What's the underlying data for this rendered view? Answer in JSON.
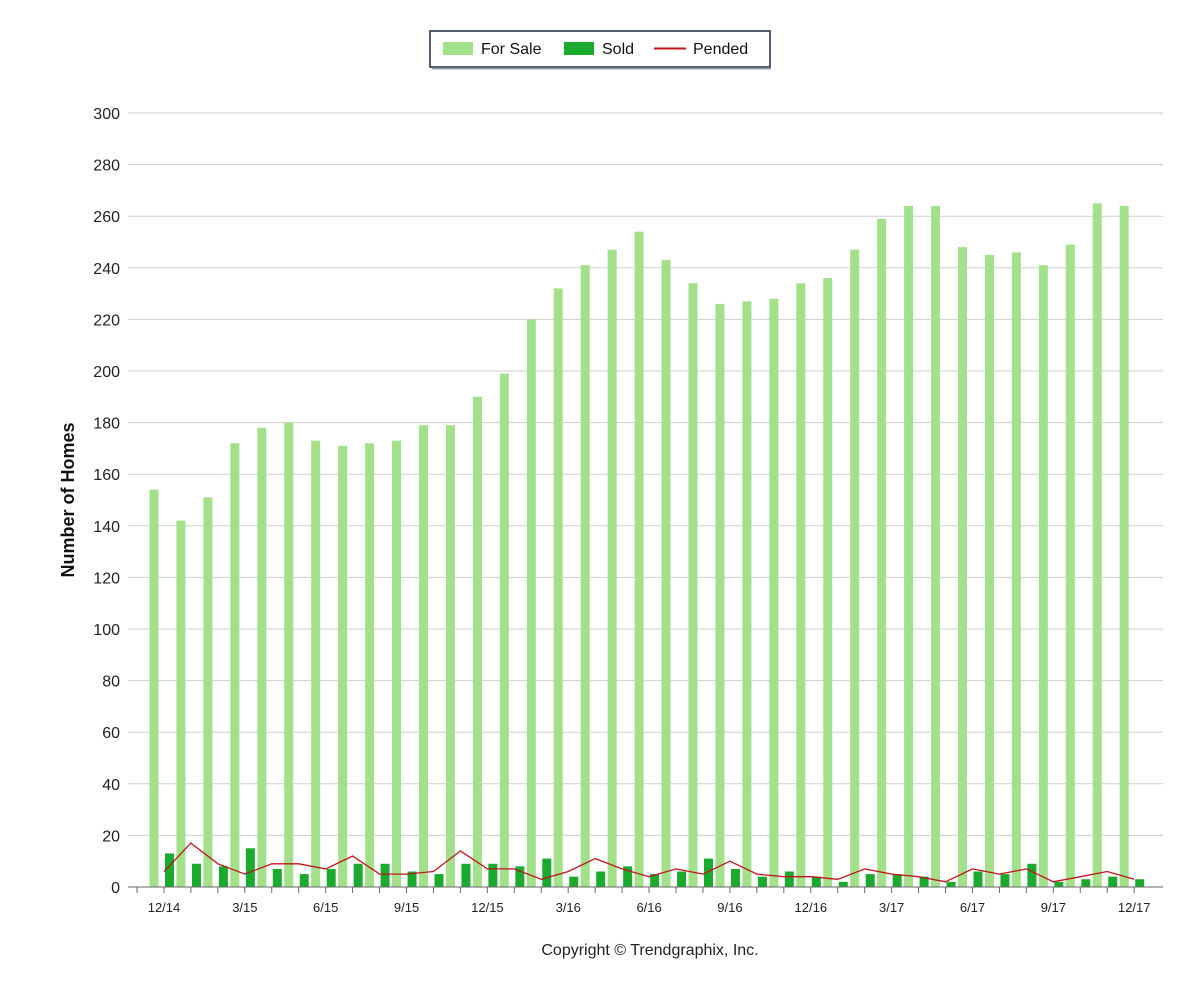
{
  "chart_data": {
    "type": "bar",
    "ylabel": "Number of Homes",
    "ylim": [
      0,
      300
    ],
    "yticks": [
      0,
      20,
      40,
      60,
      80,
      100,
      120,
      140,
      160,
      180,
      200,
      220,
      240,
      260,
      280,
      300
    ],
    "x_tick_labels": [
      "12/14",
      "3/15",
      "6/15",
      "9/15",
      "12/15",
      "3/16",
      "6/16",
      "9/16",
      "12/16",
      "3/17",
      "6/17",
      "9/17",
      "12/17"
    ],
    "grid": true,
    "legend_position": "top-center",
    "series": [
      {
        "name": "For Sale",
        "type": "bar",
        "color": "#a2e08a",
        "values": [
          154,
          142,
          151,
          172,
          178,
          180,
          173,
          171,
          172,
          173,
          179,
          179,
          190,
          199,
          220,
          232,
          241,
          247,
          254,
          243,
          234,
          226,
          227,
          228,
          234,
          236,
          247,
          259,
          264,
          264,
          248,
          245,
          246,
          241,
          249,
          265,
          264
        ]
      },
      {
        "name": "Sold",
        "type": "bar",
        "color": "#1aaa2e",
        "values": [
          13,
          9,
          8,
          15,
          7,
          5,
          7,
          9,
          9,
          6,
          5,
          9,
          9,
          8,
          11,
          4,
          6,
          8,
          5,
          6,
          11,
          7,
          4,
          6,
          4,
          2,
          5,
          5,
          4,
          2,
          6,
          5,
          9,
          2,
          3,
          4,
          3
        ]
      },
      {
        "name": "Pended",
        "type": "line",
        "color": "#c0141a",
        "values": [
          6,
          17,
          9,
          5,
          9,
          9,
          7,
          12,
          5,
          5,
          6,
          14,
          7,
          7,
          3,
          6,
          11,
          7,
          4,
          7,
          5,
          10,
          5,
          4,
          4,
          3,
          7,
          5,
          4,
          2,
          7,
          5,
          7,
          2,
          4,
          6,
          3
        ]
      }
    ],
    "footer": "Copyright © Trendgraphix, Inc."
  }
}
